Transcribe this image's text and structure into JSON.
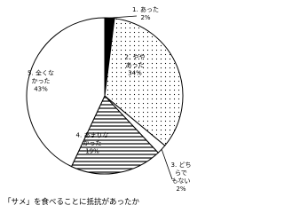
{
  "chart_data": {
    "type": "pie",
    "title": "「サメ」を食べることに抵抗があったか",
    "categories": [
      "1. あった",
      "2. やや\nあった",
      "3. どちらで\nもない",
      "4. あまりな\nかった",
      "5. 全くな\nかった"
    ],
    "values": [
      2,
      34,
      2,
      19,
      43
    ],
    "value_labels": [
      "2%",
      "34%",
      "2%",
      "19%",
      "43%"
    ],
    "fills": [
      "solid",
      "dots",
      "none",
      "hlines",
      "none"
    ],
    "color": "#000000",
    "start_angle": 0,
    "direction": "clockwise"
  }
}
